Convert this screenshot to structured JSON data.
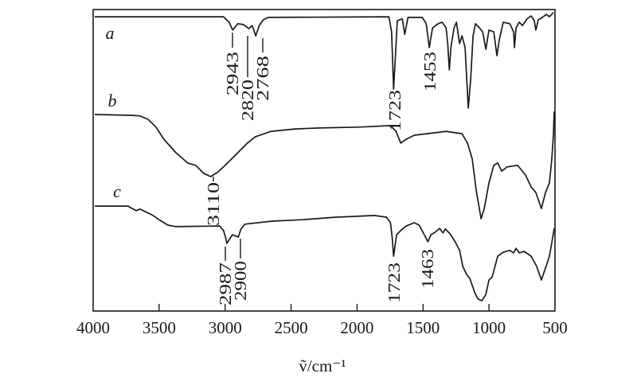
{
  "chart_data": {
    "type": "line",
    "title": "",
    "xlabel": "ṽ/cm⁻¹",
    "ylabel": "",
    "xlim": [
      4000,
      500
    ],
    "ylim": [
      0,
      100
    ],
    "x_reversed": true,
    "grid": false,
    "xticks": [
      4000,
      3500,
      3000,
      2500,
      2000,
      1500,
      1000,
      500
    ],
    "line_color": "#1a1a1a",
    "series": [
      {
        "name": "a",
        "points": [
          [
            3988,
            97.6
          ],
          [
            3012,
            97.6
          ],
          [
            2970,
            95.8
          ],
          [
            2943,
            93.2
          ],
          [
            2904,
            95.3
          ],
          [
            2861,
            95.0
          ],
          [
            2820,
            93.7
          ],
          [
            2795,
            94.7
          ],
          [
            2768,
            91.3
          ],
          [
            2741,
            94.7
          ],
          [
            2711,
            96.6
          ],
          [
            2675,
            97.4
          ],
          [
            1759,
            97.6
          ],
          [
            1738,
            92.6
          ],
          [
            1723,
            73.6
          ],
          [
            1695,
            96.3
          ],
          [
            1657,
            96.9
          ],
          [
            1639,
            91.8
          ],
          [
            1614,
            97.4
          ],
          [
            1506,
            97.4
          ],
          [
            1476,
            95.3
          ],
          [
            1453,
            87.4
          ],
          [
            1428,
            93.9
          ],
          [
            1386,
            95.3
          ],
          [
            1355,
            95.8
          ],
          [
            1325,
            93.9
          ],
          [
            1313,
            88.7
          ],
          [
            1301,
            80.0
          ],
          [
            1289,
            87.4
          ],
          [
            1265,
            93.9
          ],
          [
            1247,
            95.8
          ],
          [
            1223,
            88.7
          ],
          [
            1205,
            91.3
          ],
          [
            1181,
            87.4
          ],
          [
            1157,
            67.3
          ],
          [
            1139,
            76.8
          ],
          [
            1121,
            91.3
          ],
          [
            1103,
            95.3
          ],
          [
            1072,
            93.9
          ],
          [
            1048,
            92.6
          ],
          [
            1024,
            86.8
          ],
          [
            1000,
            93.2
          ],
          [
            964,
            92.6
          ],
          [
            940,
            84.7
          ],
          [
            922,
            90.0
          ],
          [
            892,
            95.8
          ],
          [
            843,
            95.3
          ],
          [
            813,
            92.6
          ],
          [
            807,
            87.4
          ],
          [
            795,
            93.9
          ],
          [
            771,
            95.8
          ],
          [
            747,
            94.7
          ],
          [
            711,
            96.9
          ],
          [
            681,
            97.9
          ],
          [
            657,
            96.3
          ],
          [
            645,
            93.2
          ],
          [
            627,
            96.6
          ],
          [
            596,
            97.4
          ],
          [
            566,
            98.4
          ],
          [
            542,
            97.6
          ],
          [
            512,
            99.0
          ]
        ]
      },
      {
        "name": "b",
        "points": [
          [
            3988,
            65.2
          ],
          [
            3705,
            64.9
          ],
          [
            3645,
            64.7
          ],
          [
            3584,
            63.6
          ],
          [
            3524,
            61.0
          ],
          [
            3464,
            57.0
          ],
          [
            3373,
            52.5
          ],
          [
            3283,
            49.1
          ],
          [
            3223,
            48.3
          ],
          [
            3163,
            45.7
          ],
          [
            3110,
            44.6
          ],
          [
            3060,
            45.9
          ],
          [
            3012,
            47.8
          ],
          [
            2952,
            50.4
          ],
          [
            2892,
            53.0
          ],
          [
            2831,
            55.7
          ],
          [
            2771,
            57.8
          ],
          [
            2651,
            59.6
          ],
          [
            2470,
            60.4
          ],
          [
            2289,
            60.7
          ],
          [
            1988,
            61.0
          ],
          [
            1747,
            61.5
          ],
          [
            1705,
            59.6
          ],
          [
            1669,
            55.7
          ],
          [
            1627,
            57.0
          ],
          [
            1566,
            58.3
          ],
          [
            1416,
            59.1
          ],
          [
            1325,
            59.6
          ],
          [
            1205,
            58.8
          ],
          [
            1163,
            55.7
          ],
          [
            1127,
            50.4
          ],
          [
            1096,
            39.8
          ],
          [
            1060,
            30.6
          ],
          [
            1036,
            34.0
          ],
          [
            1000,
            42.5
          ],
          [
            964,
            48.3
          ],
          [
            934,
            49.1
          ],
          [
            904,
            46.4
          ],
          [
            862,
            47.8
          ],
          [
            783,
            48.3
          ],
          [
            723,
            45.1
          ],
          [
            681,
            41.2
          ],
          [
            645,
            39.3
          ],
          [
            603,
            34.0
          ],
          [
            572,
            39.3
          ],
          [
            542,
            42.5
          ],
          [
            524,
            50.4
          ],
          [
            512,
            58.3
          ],
          [
            506,
            66.2
          ]
        ]
      },
      {
        "name": "c",
        "points": [
          [
            3988,
            34.8
          ],
          [
            3735,
            34.8
          ],
          [
            3705,
            34.0
          ],
          [
            3675,
            33.3
          ],
          [
            3645,
            33.8
          ],
          [
            3554,
            31.9
          ],
          [
            3494,
            30.1
          ],
          [
            3434,
            28.5
          ],
          [
            3373,
            28.0
          ],
          [
            3042,
            28.2
          ],
          [
            3012,
            26.7
          ],
          [
            2994,
            24.0
          ],
          [
            2987,
            22.4
          ],
          [
            2945,
            25.3
          ],
          [
            2900,
            24.5
          ],
          [
            2880,
            27.2
          ],
          [
            2849,
            28.8
          ],
          [
            2651,
            29.8
          ],
          [
            2410,
            30.3
          ],
          [
            2169,
            31.1
          ],
          [
            1867,
            31.7
          ],
          [
            1777,
            31.1
          ],
          [
            1747,
            29.3
          ],
          [
            1733,
            24.0
          ],
          [
            1723,
            18.2
          ],
          [
            1700,
            25.3
          ],
          [
            1657,
            27.2
          ],
          [
            1627,
            28.2
          ],
          [
            1566,
            29.3
          ],
          [
            1530,
            28.5
          ],
          [
            1500,
            26.1
          ],
          [
            1463,
            23.0
          ],
          [
            1440,
            25.3
          ],
          [
            1410,
            26.1
          ],
          [
            1374,
            27.4
          ],
          [
            1349,
            25.9
          ],
          [
            1331,
            27.2
          ],
          [
            1295,
            25.6
          ],
          [
            1253,
            22.7
          ],
          [
            1223,
            20.1
          ],
          [
            1199,
            14.8
          ],
          [
            1169,
            12.1
          ],
          [
            1145,
            10.8
          ],
          [
            1108,
            6.1
          ],
          [
            1084,
            4.0
          ],
          [
            1054,
            3.4
          ],
          [
            1024,
            5.5
          ],
          [
            1000,
            10.3
          ],
          [
            976,
            11.3
          ],
          [
            934,
            18.2
          ],
          [
            892,
            19.5
          ],
          [
            843,
            20.1
          ],
          [
            813,
            19.3
          ],
          [
            795,
            20.8
          ],
          [
            771,
            19.3
          ],
          [
            735,
            19.8
          ],
          [
            681,
            18.2
          ],
          [
            639,
            14.8
          ],
          [
            603,
            10.3
          ],
          [
            578,
            13.5
          ],
          [
            542,
            18.2
          ],
          [
            524,
            22.7
          ],
          [
            506,
            27.4
          ]
        ]
      }
    ],
    "annotations": [
      {
        "text": "2943",
        "curve": "a",
        "x": 2943
      },
      {
        "text": "2820",
        "curve": "a",
        "x": 2820
      },
      {
        "text": "2768",
        "curve": "a",
        "x": 2768
      },
      {
        "text": "1723",
        "curve": "a",
        "x": 1723
      },
      {
        "text": "1453",
        "curve": "a",
        "x": 1453
      },
      {
        "text": "3110",
        "curve": "b",
        "x": 3110
      },
      {
        "text": "2987",
        "curve": "c",
        "x": 2987
      },
      {
        "text": "2900",
        "curve": "c",
        "x": 2900
      },
      {
        "text": "1723",
        "curve": "c",
        "x": 1723
      },
      {
        "text": "1463",
        "curve": "c",
        "x": 1463
      }
    ]
  }
}
